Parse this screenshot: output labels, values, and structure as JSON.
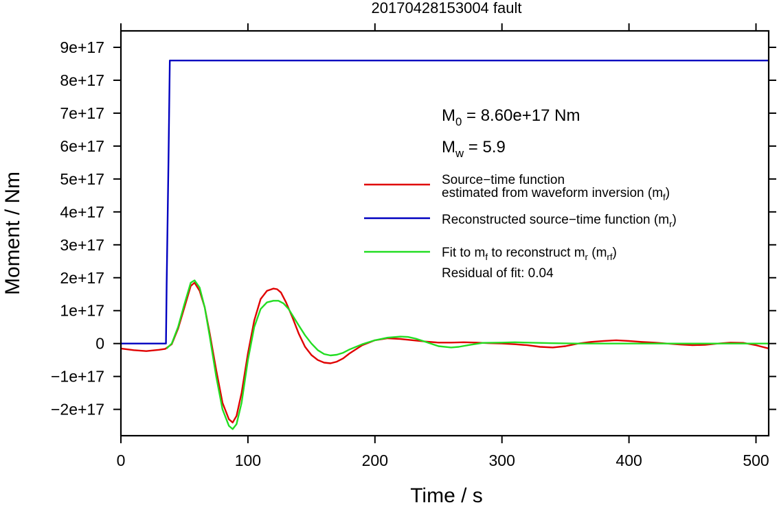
{
  "chart_data": {
    "type": "line",
    "title": "20170428153004 fault",
    "xlabel": "Time / s",
    "ylabel": "Moment / Nm",
    "xlim": [
      0,
      510
    ],
    "ylim": [
      -2.8e+17,
      9.5e+17
    ],
    "x_ticks": [
      0,
      100,
      200,
      300,
      400,
      500
    ],
    "x_tick_labels": [
      "0",
      "100",
      "200",
      "300",
      "400",
      "500"
    ],
    "y_ticks": [
      -2e+17,
      -1e+17,
      0,
      1e+17,
      2e+17,
      3e+17,
      4e+17,
      5e+17,
      6e+17,
      7e+17,
      8e+17,
      9e+17
    ],
    "y_tick_labels": [
      "−2e+17",
      "−1e+17",
      "0",
      "1e+17",
      "2e+17",
      "3e+17",
      "4e+17",
      "5e+17",
      "6e+17",
      "7e+17",
      "8e+17",
      "9e+17"
    ],
    "grid": false,
    "legend_position": "right",
    "annotations": {
      "m0_prefix": "M",
      "m0_sub": "0",
      "m0_value": " = 8.60e+17 Nm",
      "mw_prefix": "M",
      "mw_sub": "w",
      "mw_value": " = 5.9",
      "residual": "Residual of fit: 0.04"
    },
    "legend": [
      {
        "color": "#e00000",
        "line1": "Source−time function",
        "line2_text": "estimated from waveform inversion (m",
        "line2_sub": "f",
        "line2_end": ")"
      },
      {
        "color": "#0000c0",
        "text": "Reconstructed source−time function (m",
        "sub": "r",
        "end": ")"
      },
      {
        "color": "#22dd22",
        "p1": "Fit to m",
        "s1": "f",
        "p2": " to reconstruct m",
        "s2": "r",
        "p3": " (m",
        "s3": "rf",
        "p4": ")"
      }
    ],
    "series": [
      {
        "key": "mr",
        "color": "#0000c0",
        "x": [
          0,
          35.5,
          36,
          37.5,
          38.5,
          510
        ],
        "y": [
          0,
          0,
          1.8e+17,
          5.6e+17,
          8.6e+17,
          8.6e+17
        ]
      },
      {
        "key": "mf",
        "color": "#e00000",
        "x": [
          0,
          10,
          20,
          30,
          35,
          40,
          45,
          50,
          55,
          58,
          62,
          66,
          70,
          75,
          80,
          85,
          88,
          91,
          95,
          100,
          105,
          110,
          115,
          120,
          123,
          126,
          130,
          135,
          140,
          145,
          150,
          155,
          160,
          165,
          170,
          175,
          180,
          190,
          200,
          210,
          220,
          230,
          240,
          250,
          260,
          270,
          280,
          290,
          300,
          310,
          320,
          330,
          340,
          350,
          360,
          370,
          380,
          390,
          400,
          410,
          420,
          430,
          440,
          450,
          460,
          470,
          480,
          490,
          500,
          510
        ],
        "y": [
          -1.5e+16,
          -2e+16,
          -2.3e+16,
          -1.9e+16,
          -1.6e+16,
          -2000000000000000.0,
          4.5e+16,
          1.1e+17,
          1.75e+17,
          1.85e+17,
          1.6e+17,
          1.1e+17,
          3e+16,
          -8e+16,
          -1.8e+17,
          -2.3e+17,
          -2.4e+17,
          -2.2e+17,
          -1.5e+17,
          -3e+16,
          7e+16,
          1.35e+17,
          1.6e+17,
          1.67e+17,
          1.65e+17,
          1.55e+17,
          1.25e+17,
          8e+16,
          3e+16,
          -1e+16,
          -3.5e+16,
          -5e+16,
          -5.8e+16,
          -6e+16,
          -5.5e+16,
          -4.5e+16,
          -3e+16,
          -5000000000000000.0,
          1e+16,
          1.6e+16,
          1.4e+16,
          1e+16,
          6000000000000000.0,
          3000000000000000.0,
          3000000000000000.0,
          4000000000000000.0,
          3000000000000000.0,
          1000000000000000.0,
          0,
          -2000000000000000.0,
          -5000000000000000.0,
          -1e+16,
          -1.2e+16,
          -8000000000000000.0,
          0,
          5000000000000000.0,
          8000000000000000.0,
          1e+16,
          8000000000000000.0,
          5000000000000000.0,
          3000000000000000.0,
          0,
          -3000000000000000.0,
          -5000000000000000.0,
          -4000000000000000.0,
          0,
          3000000000000000.0,
          2000000000000000.0,
          -5000000000000000.0,
          -1.5e+16
        ]
      },
      {
        "key": "mrf",
        "color": "#22dd22",
        "x": [
          36,
          40,
          45,
          50,
          55,
          58,
          62,
          66,
          70,
          75,
          80,
          85,
          88,
          91,
          95,
          100,
          105,
          110,
          115,
          120,
          124,
          128,
          132,
          136,
          140,
          145,
          150,
          155,
          160,
          165,
          170,
          175,
          180,
          190,
          200,
          210,
          220,
          226,
          232,
          240,
          250,
          260,
          266,
          275,
          285,
          300,
          310,
          320,
          340,
          360,
          400,
          440,
          480,
          510
        ],
        "y": [
          -1.5e+16,
          0,
          5e+16,
          1.2e+17,
          1.85e+17,
          1.92e+17,
          1.7e+17,
          1.1e+17,
          2e+16,
          -1e+17,
          -2e+17,
          -2.5e+17,
          -2.6e+17,
          -2.45e+17,
          -1.8e+17,
          -5e+16,
          5e+16,
          1.05e+17,
          1.25e+17,
          1.3e+17,
          1.3e+17,
          1.22e+17,
          1.05e+17,
          8e+16,
          5.5e+16,
          2.5e+16,
          0,
          -2e+16,
          -3.2e+16,
          -3.6e+16,
          -3.4e+16,
          -2.8e+16,
          -1.8e+16,
          -2000000000000000.0,
          1e+16,
          1.8e+16,
          2.1e+16,
          2e+16,
          1.5e+16,
          5000000000000000.0,
          -8000000000000000.0,
          -1.2e+16,
          -1e+16,
          -4000000000000000.0,
          2000000000000000.0,
          3000000000000000.0,
          4000000000000000.0,
          3000000000000000.0,
          1000000000000000.0,
          0,
          0,
          0,
          0,
          0
        ]
      }
    ]
  }
}
